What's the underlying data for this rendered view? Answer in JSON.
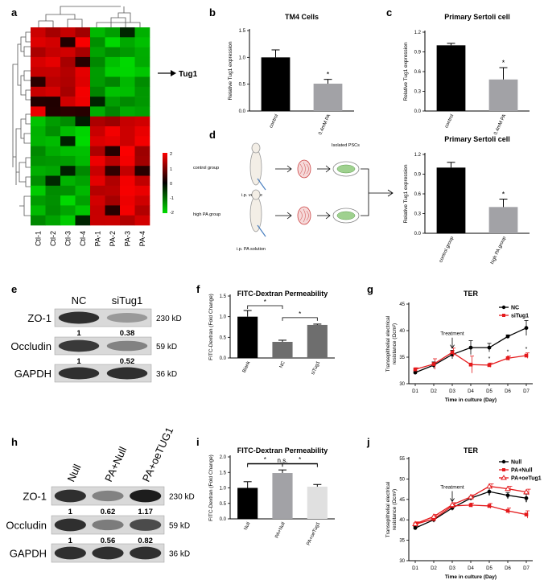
{
  "colors": {
    "black_bar": "#000000",
    "gray_bar": "#a2a2a6",
    "mid_bar": "#6e6e6e",
    "light_bar": "#e0e0e0",
    "red": "#e41a1c",
    "heat_hi": "#ff0000",
    "heat_lo": "#00dd00"
  },
  "panels": {
    "a": {
      "label": "a",
      "annotation": "Tug1",
      "columns": [
        "Ctl-1",
        "Ctl-2",
        "Ctl-3",
        "Ctl-4",
        "PA-1",
        "PA-2",
        "PA-3",
        "PA-4"
      ],
      "scale_labels": [
        "2",
        "1",
        "0",
        "-1",
        "-2"
      ]
    },
    "d": {
      "label": "d",
      "isolated": "Isolated PSCs",
      "control": "control group",
      "high": "high PA group",
      "vehicle": "i.p. vehicle",
      "pa_solution": "i.p. PA solution"
    },
    "e": {
      "label": "e",
      "cols": [
        "NC",
        "siTug1"
      ],
      "rows": [
        {
          "name": "ZO-1",
          "kd": "230 kD",
          "vals": [
            "1",
            "0.38"
          ]
        },
        {
          "name": "Occludin",
          "kd": "59 kD",
          "vals": [
            "1",
            "0.52"
          ]
        },
        {
          "name": "GAPDH",
          "kd": "36 kD",
          "vals": []
        }
      ]
    },
    "h": {
      "label": "h",
      "cols": [
        "Null",
        "PA+Null",
        "PA+oeTUG1"
      ],
      "rows": [
        {
          "name": "ZO-1",
          "kd": "230 kD",
          "vals": [
            "1",
            "0.62",
            "1.17"
          ]
        },
        {
          "name": "Occludin",
          "kd": "59 kD",
          "vals": [
            "1",
            "0.56",
            "0.82"
          ]
        },
        {
          "name": "GAPDH",
          "kd": "36 kD",
          "vals": []
        }
      ]
    }
  },
  "chart_data": [
    {
      "id": "b",
      "label": "b",
      "type": "bar",
      "title": "TM4 Cells",
      "ylabel": "Relative Tug1 expression",
      "categories": [
        "control",
        "0.4mM PA"
      ],
      "values": [
        1.0,
        0.51
      ],
      "errors": [
        0.14,
        0.08
      ],
      "ylim": [
        0,
        1.5
      ],
      "ticks": [
        "0.0",
        "0.5",
        "1.0",
        "1.5"
      ],
      "tick_values": [
        0,
        0.5,
        1.0,
        1.5
      ],
      "bar_colors": [
        "#000000",
        "#a2a2a6"
      ],
      "sig": [
        {
          "cat": 1,
          "text": "*"
        }
      ]
    },
    {
      "id": "c",
      "label": "c",
      "type": "bar",
      "title": "Primary Sertoli cell",
      "ylabel": "Relative Tug1 expression",
      "categories": [
        "control",
        "0.4mM PA"
      ],
      "values": [
        1.0,
        0.48
      ],
      "errors": [
        0.03,
        0.18
      ],
      "ylim": [
        0,
        1.2
      ],
      "ticks": [
        "0.0",
        "0.3",
        "0.6",
        "0.9",
        "1.2"
      ],
      "tick_values": [
        0,
        0.3,
        0.6,
        0.9,
        1.2
      ],
      "bar_colors": [
        "#000000",
        "#a2a2a6"
      ],
      "sig": [
        {
          "cat": 1,
          "text": "*"
        }
      ]
    },
    {
      "id": "d2",
      "type": "bar",
      "title": "Primary Sertoli cell",
      "ylabel": "Relative Tug1 expression",
      "categories": [
        "control group",
        "high PA group"
      ],
      "values": [
        1.0,
        0.4
      ],
      "errors": [
        0.08,
        0.12
      ],
      "ylim": [
        0,
        1.2
      ],
      "ticks": [
        "0.0",
        "0.3",
        "0.6",
        "0.9",
        "1.2"
      ],
      "tick_values": [
        0,
        0.3,
        0.6,
        0.9,
        1.2
      ],
      "bar_colors": [
        "#000000",
        "#a2a2a6"
      ],
      "sig": [
        {
          "cat": 1,
          "text": "*"
        }
      ]
    },
    {
      "id": "f",
      "label": "f",
      "type": "bar",
      "title": "FITC-Dextran Permeability",
      "ylabel": "FITC-Dextran (Fold Change)",
      "categories": [
        "Blank",
        "NC",
        "siTug1"
      ],
      "values": [
        1.0,
        0.39,
        0.8
      ],
      "errors": [
        0.15,
        0.04,
        0.02
      ],
      "ylim": [
        0,
        1.5
      ],
      "ticks": [
        "0.0",
        "0.5",
        "1.0",
        "1.5"
      ],
      "tick_values": [
        0,
        0.5,
        1.0,
        1.5
      ],
      "bar_colors": [
        "#000000",
        "#6e6e6e",
        "#6e6e6e"
      ],
      "brackets": [
        {
          "from": 0,
          "to": 1,
          "text": "*"
        },
        {
          "from": 1,
          "to": 2,
          "text": "*"
        }
      ]
    },
    {
      "id": "i",
      "label": "i",
      "type": "bar",
      "title": "FITC-Dextran Permeability",
      "ylabel": "FITC-Dextran (Fold Change)",
      "categories": [
        "Null",
        "PA+Null",
        "PA+oeTug1"
      ],
      "values": [
        1.0,
        1.48,
        1.04
      ],
      "errors": [
        0.2,
        0.1,
        0.07
      ],
      "ylim": [
        0,
        2.0
      ],
      "ticks": [
        "0.0",
        "0.5",
        "1.0",
        "1.5",
        "2.0"
      ],
      "tick_values": [
        0,
        0.5,
        1.0,
        1.5,
        2.0
      ],
      "bar_colors": [
        "#000000",
        "#a2a2a6",
        "#e0e0e0"
      ],
      "brackets": [
        {
          "from": 0,
          "to": 1,
          "text": "*"
        },
        {
          "from": 1,
          "to": 2,
          "text": "*"
        },
        {
          "from": 0,
          "to": 2,
          "text": "n.s."
        }
      ]
    },
    {
      "id": "g",
      "label": "g",
      "type": "line",
      "title": "TER",
      "xlabel": "Time in culture (Day)",
      "ylabel": "Transepithelial electrical resistance (Ωcm²)",
      "x": [
        "D1",
        "D2",
        "D3",
        "D4",
        "D5",
        "D6",
        "D7"
      ],
      "ylim": [
        30,
        45
      ],
      "ticks": [
        "30",
        "35",
        "40",
        "45"
      ],
      "tick_values": [
        30,
        35,
        40,
        45
      ],
      "annotation": "Treatment",
      "annotation_x": "D3",
      "series": [
        {
          "name": "NC",
          "color": "#000000",
          "marker": "circle",
          "values": [
            32.1,
            33.5,
            35.5,
            36.8,
            36.8,
            38.9,
            40.5
          ],
          "errors": [
            0.3,
            0.6,
            0.8,
            1.3,
            0.8,
            0.3,
            1.4
          ]
        },
        {
          "name": "siTug1",
          "color": "#e41a1c",
          "marker": "square",
          "values": [
            32.7,
            33.7,
            35.9,
            33.6,
            33.5,
            34.8,
            35.3
          ],
          "errors": [
            0.3,
            1.0,
            0.8,
            1.6,
            0.4,
            0.4,
            0.5
          ]
        }
      ],
      "sig": [
        {
          "x": "D5",
          "text": "*"
        },
        {
          "x": "D6",
          "text": "*"
        },
        {
          "x": "D7",
          "text": "*"
        }
      ]
    },
    {
      "id": "j",
      "label": "j",
      "type": "line",
      "title": "TER",
      "xlabel": "Time in culture (Day)",
      "ylabel": "Transepithelial electrical resistance (Ωcm²)",
      "x": [
        "D1",
        "D2",
        "D3",
        "D4",
        "D5",
        "D6",
        "D7"
      ],
      "ylim": [
        30,
        55
      ],
      "ticks": [
        "30",
        "35",
        "40",
        "45",
        "50",
        "55"
      ],
      "tick_values": [
        30,
        35,
        40,
        45,
        50,
        55
      ],
      "annotation": "Treatment",
      "annotation_x": "D3",
      "series": [
        {
          "name": "Null",
          "color": "#000000",
          "marker": "circle",
          "values": [
            38.0,
            40.0,
            42.9,
            45.3,
            46.9,
            46.0,
            45.3
          ],
          "errors": [
            0.4,
            0.6,
            0.6,
            0.4,
            0.9,
            0.7,
            1.0
          ]
        },
        {
          "name": "PA+Null",
          "color": "#e41a1c",
          "marker": "square",
          "values": [
            38.9,
            40.2,
            43.4,
            43.6,
            43.4,
            42.2,
            41.3
          ],
          "errors": [
            0.5,
            0.5,
            0.5,
            0.5,
            0.6,
            0.7,
            0.9
          ]
        },
        {
          "name": "PA+oeTug1",
          "color": "#e41a1c",
          "marker": "triangle",
          "values": [
            39.0,
            40.8,
            43.7,
            45.6,
            48.2,
            47.6,
            46.8
          ],
          "errors": [
            0.5,
            0.5,
            0.5,
            0.5,
            0.6,
            0.6,
            0.7
          ]
        }
      ],
      "sig": [
        {
          "x": "D5",
          "text": "*"
        },
        {
          "x": "D6",
          "text": "*"
        },
        {
          "x": "D7",
          "text": "*"
        }
      ]
    }
  ]
}
